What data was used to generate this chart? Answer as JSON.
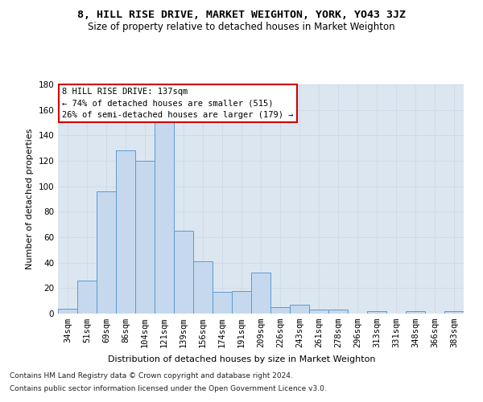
{
  "title": "8, HILL RISE DRIVE, MARKET WEIGHTON, YORK, YO43 3JZ",
  "subtitle": "Size of property relative to detached houses in Market Weighton",
  "xlabel": "Distribution of detached houses by size in Market Weighton",
  "ylabel": "Number of detached properties",
  "footnote1": "Contains HM Land Registry data © Crown copyright and database right 2024.",
  "footnote2": "Contains public sector information licensed under the Open Government Licence v3.0.",
  "categories": [
    "34sqm",
    "51sqm",
    "69sqm",
    "86sqm",
    "104sqm",
    "121sqm",
    "139sqm",
    "156sqm",
    "174sqm",
    "191sqm",
    "209sqm",
    "226sqm",
    "243sqm",
    "261sqm",
    "278sqm",
    "296sqm",
    "313sqm",
    "331sqm",
    "348sqm",
    "366sqm",
    "383sqm"
  ],
  "values": [
    4,
    26,
    96,
    128,
    120,
    151,
    65,
    41,
    17,
    18,
    32,
    5,
    7,
    3,
    3,
    0,
    2,
    0,
    2,
    0,
    2
  ],
  "bar_color": "#c5d8ed",
  "bar_edge_color": "#5b9bd5",
  "property_label": "8 HILL RISE DRIVE: 137sqm",
  "annotation_line1": "← 74% of detached houses are smaller (515)",
  "annotation_line2": "26% of semi-detached houses are larger (179) →",
  "annotation_box_color": "#ffffff",
  "annotation_box_edge_color": "#cc0000",
  "ylim": [
    0,
    180
  ],
  "yticks": [
    0,
    20,
    40,
    60,
    80,
    100,
    120,
    140,
    160,
    180
  ],
  "grid_color": "#d0d8e8",
  "bg_color": "#dce6f0",
  "background_color": "#ffffff",
  "title_fontsize": 9.5,
  "subtitle_fontsize": 8.5,
  "xlabel_fontsize": 8,
  "ylabel_fontsize": 8,
  "tick_fontsize": 7.5,
  "annot_fontsize": 7.5,
  "footnote_fontsize": 6.5
}
